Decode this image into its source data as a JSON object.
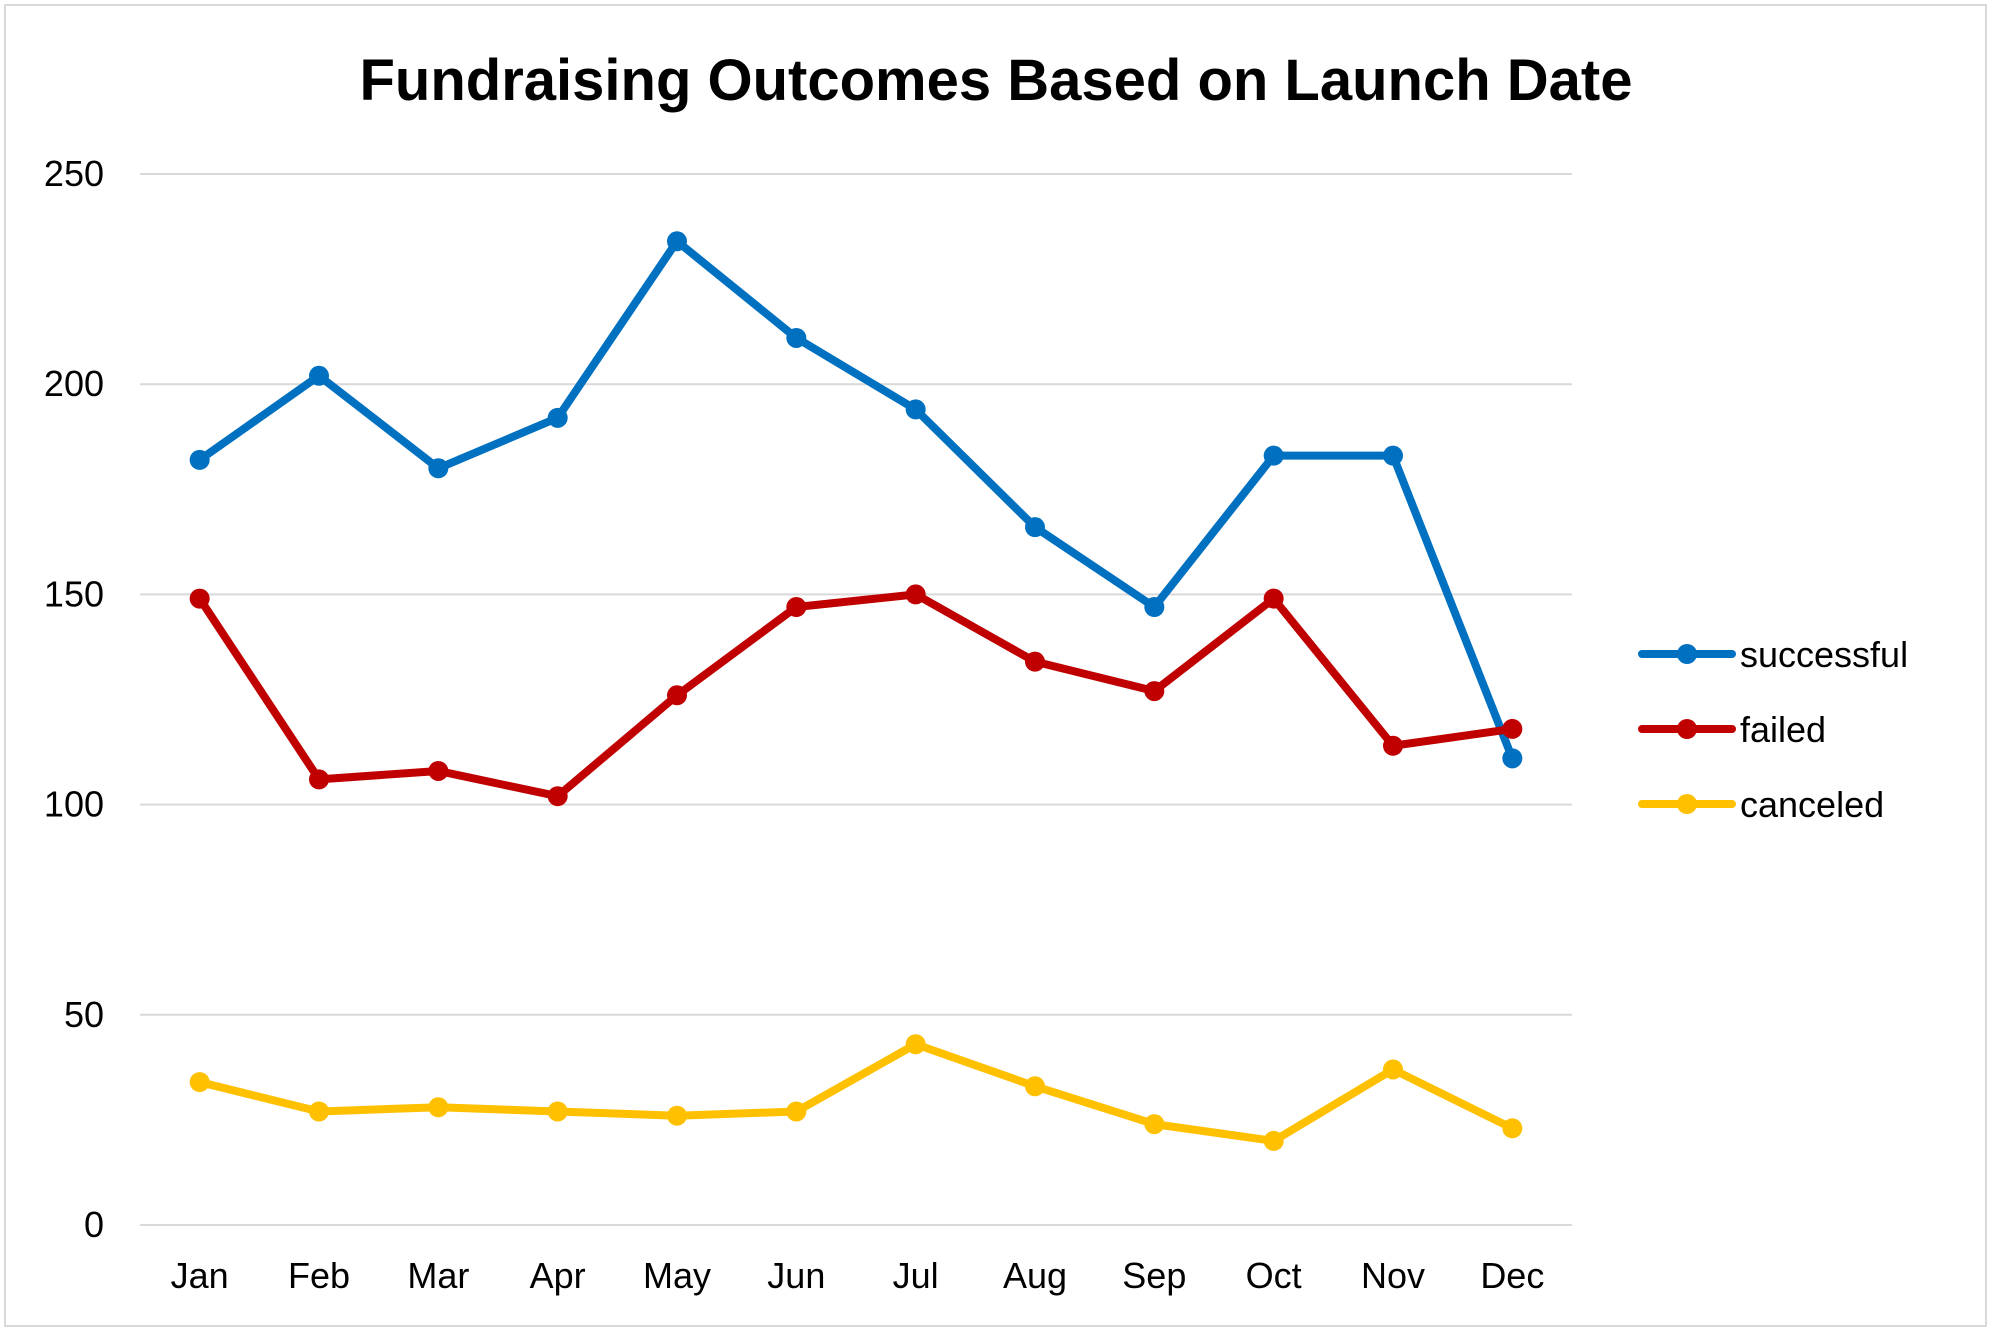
{
  "chart_data": {
    "type": "line",
    "title": "Fundraising Outcomes Based on Launch Date",
    "xlabel": "",
    "ylabel": "",
    "categories": [
      "Jan",
      "Feb",
      "Mar",
      "Apr",
      "May",
      "Jun",
      "Jul",
      "Aug",
      "Sep",
      "Oct",
      "Nov",
      "Dec"
    ],
    "ylim": [
      0,
      250
    ],
    "yticks": [
      0,
      50,
      100,
      150,
      200,
      250
    ],
    "ytick_labels": [
      "0",
      "50",
      "100",
      "150",
      "200",
      "250"
    ],
    "grid": true,
    "legend_position": "right",
    "series": [
      {
        "name": "successful",
        "color": "#0070c0",
        "values": [
          182,
          202,
          180,
          192,
          234,
          211,
          194,
          166,
          147,
          183,
          183,
          111
        ]
      },
      {
        "name": "failed",
        "color": "#c00000",
        "values": [
          149,
          106,
          108,
          102,
          126,
          147,
          150,
          134,
          127,
          149,
          114,
          118
        ]
      },
      {
        "name": "canceled",
        "color": "#ffc000",
        "values": [
          34,
          27,
          28,
          27,
          26,
          27,
          43,
          33,
          24,
          20,
          37,
          23
        ]
      }
    ]
  }
}
